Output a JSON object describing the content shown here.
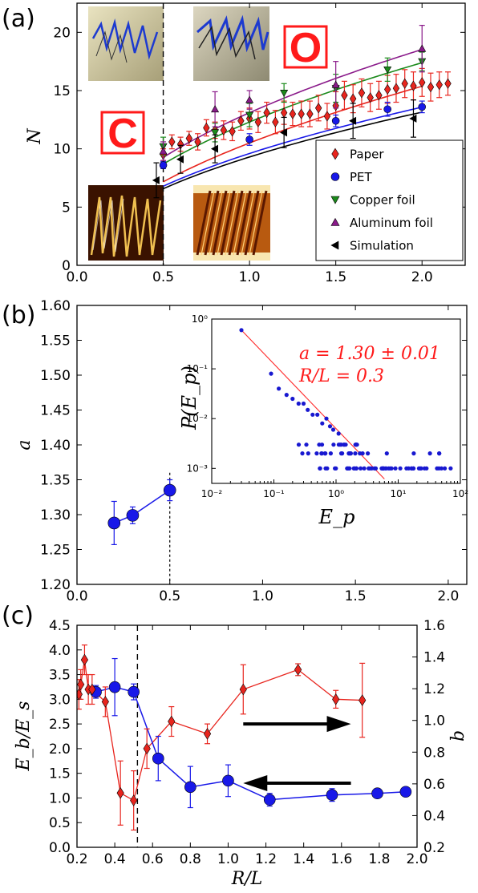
{
  "panels": {
    "a_label": "(a)",
    "b_label": "(b)",
    "c_label": "(c)"
  },
  "chart_data": [
    {
      "panel": "(a)",
      "type": "scatter",
      "xlabel": "",
      "ylabel": "N",
      "xlim": [
        0.0,
        2.25
      ],
      "ylim": [
        0,
        22.5
      ],
      "xticks": [
        "0.0",
        "0.5",
        "1.0",
        "1.5",
        "2.0"
      ],
      "yticks": [
        "0",
        "5",
        "10",
        "15",
        "20"
      ],
      "vline_x": 0.5,
      "letters": [
        "O",
        "C"
      ],
      "legend_position": "lower-right",
      "series": [
        {
          "name": "Paper",
          "marker": "diamond",
          "color": "#e8251e",
          "x": [
            0.5,
            0.55,
            0.6,
            0.65,
            0.7,
            0.75,
            0.8,
            0.85,
            0.9,
            0.95,
            1.0,
            1.05,
            1.1,
            1.15,
            1.2,
            1.25,
            1.3,
            1.35,
            1.4,
            1.45,
            1.5,
            1.55,
            1.6,
            1.65,
            1.7,
            1.75,
            1.8,
            1.85,
            1.9,
            1.95,
            2.0,
            2.05,
            2.1,
            2.15
          ],
          "y": [
            9.5,
            10.6,
            10.4,
            10.9,
            10.6,
            11.8,
            11.6,
            11.6,
            11.5,
            12.4,
            12.6,
            12.3,
            13.1,
            12.3,
            13.1,
            13.0,
            13.0,
            13.0,
            13.5,
            12.8,
            13.7,
            14.6,
            14.3,
            14.8,
            14.4,
            14.6,
            15.1,
            15.2,
            15.6,
            15.4,
            15.7,
            15.3,
            15.5,
            15.6
          ],
          "err": [
            0.5,
            0.6,
            0.6,
            0.6,
            0.7,
            0.7,
            0.7,
            0.8,
            0.8,
            0.8,
            0.9,
            0.9,
            0.9,
            1.0,
            1.0,
            1.0,
            1.1,
            1.1,
            1.1,
            1.1,
            1.2,
            1.2,
            1.2,
            1.2,
            1.2,
            1.2,
            1.2,
            1.2,
            1.2,
            1.2,
            1.2,
            1.2,
            1.1,
            1.0
          ]
        },
        {
          "name": "PET",
          "marker": "circle",
          "color": "#1818e8",
          "x": [
            0.5,
            1.0,
            1.5,
            1.8,
            2.0
          ],
          "y": [
            8.6,
            10.8,
            12.4,
            13.4,
            13.6
          ],
          "err": [
            0.3,
            0.5,
            0.5,
            0.6,
            0.5
          ]
        },
        {
          "name": "Copper foil",
          "marker": "triangle-down",
          "color": "#1b8a1b",
          "x": [
            0.5,
            0.8,
            1.0,
            1.2,
            1.5,
            1.8,
            2.0
          ],
          "y": [
            10.2,
            11.4,
            12.9,
            14.8,
            15.2,
            16.8,
            17.5
          ],
          "err": [
            0.8,
            0.8,
            1.0,
            0.8,
            1.2,
            1.0,
            0.8
          ]
        },
        {
          "name": "Aluminum foil",
          "marker": "triangle-up",
          "color": "#8a1a8a",
          "x": [
            0.5,
            0.8,
            1.0,
            1.5,
            2.0
          ],
          "y": [
            9.8,
            13.4,
            14.2,
            15.5,
            18.6
          ],
          "err": [
            0.8,
            1.5,
            0.8,
            2.0,
            2.0
          ]
        },
        {
          "name": "Simulation",
          "marker": "triangle-left",
          "color": "#000000",
          "x": [
            0.46,
            0.6,
            0.8,
            1.2,
            1.6,
            1.95
          ],
          "y": [
            7.3,
            9.1,
            10.0,
            11.4,
            12.4,
            12.6
          ],
          "err": [
            1.5,
            1.2,
            1.2,
            1.3,
            1.5,
            1.6
          ]
        }
      ],
      "fits": [
        {
          "color": "#e8251e",
          "coef": 10.5,
          "exp": 0.55
        },
        {
          "color": "#1818e8",
          "coef": 9.6,
          "exp": 0.5
        },
        {
          "color": "#1b8a1b",
          "coef": 12.3,
          "exp": 0.5
        },
        {
          "color": "#8a1a8a",
          "coef": 13.1,
          "exp": 0.5
        },
        {
          "color": "#000000",
          "coef": 9.3,
          "exp": 0.5
        }
      ]
    },
    {
      "panel": "(b)",
      "type": "line",
      "xlabel": "",
      "ylabel": "a",
      "xlim": [
        0.0,
        2.1
      ],
      "ylim": [
        1.2,
        1.6
      ],
      "xticks": [
        "0.0",
        "0.5",
        "1.0",
        "1.5",
        "2.0"
      ],
      "yticks": [
        "1.20",
        "1.25",
        "1.30",
        "1.35",
        "1.40",
        "1.45",
        "1.50",
        "1.55",
        "1.60"
      ],
      "vline_x": 0.5,
      "series": [
        {
          "name": "",
          "color": "#1818e8",
          "x": [
            0.2,
            0.3,
            0.5
          ],
          "y": [
            1.288,
            1.299,
            1.335
          ],
          "err": [
            0.031,
            0.012,
            0.015
          ]
        }
      ],
      "inset": {
        "type": "scatter",
        "xlabel": "E_p",
        "ylabel": "P(E_p)",
        "xscale": "log",
        "yscale": "log",
        "xlim": [
          0.01,
          100
        ],
        "ylim": [
          0.0005,
          1
        ],
        "xticks": [
          "10⁻²",
          "10⁻¹",
          "10⁰",
          "10¹",
          "10²"
        ],
        "yticks": [
          "10⁻³",
          "10⁻²",
          "10⁻¹",
          "10⁰"
        ],
        "annotation_a": "a = 1.30 ± 0.01",
        "annotation_rl": "R/L = 0.3",
        "fit": {
          "exponent": -1.3,
          "x_from": 0.03,
          "x_to": 6.0,
          "y_at_from": 0.6
        }
      }
    },
    {
      "panel": "(c)",
      "type": "line",
      "xlabel": "R/L",
      "ylabel": "E_b/E_s",
      "y2label": "b",
      "xlim": [
        0.2,
        2.0
      ],
      "ylim": [
        0.0,
        4.5
      ],
      "y2lim": [
        0.2,
        1.6
      ],
      "xticks": [
        "0.2",
        "0.4",
        "0.6",
        "0.8",
        "1.0",
        "1.2",
        "1.4",
        "1.6",
        "1.8",
        "2.0"
      ],
      "yticks": [
        "0.0",
        "0.5",
        "1.0",
        "1.5",
        "2.0",
        "2.5",
        "3.0",
        "3.5",
        "4.0",
        "4.5"
      ],
      "y2ticks": [
        "0.2",
        "0.4",
        "0.6",
        "0.8",
        "1.0",
        "1.2",
        "1.4",
        "1.6"
      ],
      "vline_x": 0.52,
      "series": [
        {
          "name": "",
          "axis": "left",
          "marker": "diamond",
          "color": "#e8251e",
          "x": [
            0.21,
            0.22,
            0.24,
            0.26,
            0.28,
            0.35,
            0.43,
            0.5,
            0.57,
            0.7,
            0.89,
            1.08,
            1.37,
            1.57,
            1.71
          ],
          "y": [
            3.1,
            3.3,
            3.8,
            3.2,
            3.2,
            2.95,
            1.1,
            0.95,
            2.0,
            2.55,
            2.3,
            3.2,
            3.6,
            3.0,
            2.98
          ],
          "err": [
            0.3,
            0.3,
            0.3,
            0.3,
            0.3,
            0.3,
            0.65,
            0.6,
            0.4,
            0.3,
            0.2,
            0.5,
            0.12,
            0.18,
            0.75
          ]
        },
        {
          "name": "",
          "axis": "right",
          "marker": "circle",
          "color": "#1818e8",
          "x": [
            0.3,
            0.4,
            0.5,
            0.63,
            0.8,
            1.0,
            1.22,
            1.55,
            1.79,
            1.94
          ],
          "y": [
            1.18,
            1.21,
            1.18,
            0.76,
            0.58,
            0.62,
            0.5,
            0.53,
            0.54,
            0.55
          ],
          "err": [
            0.04,
            0.18,
            0.05,
            0.14,
            0.13,
            0.1,
            0.04,
            0.04,
            0.02,
            0.02
          ]
        }
      ],
      "arrows": [
        {
          "direction": "right",
          "from_x": 1.08,
          "to_x": 1.65,
          "y": 2.5
        },
        {
          "direction": "left",
          "from_x": 1.65,
          "to_x": 1.08,
          "y": 1.3
        }
      ]
    }
  ]
}
